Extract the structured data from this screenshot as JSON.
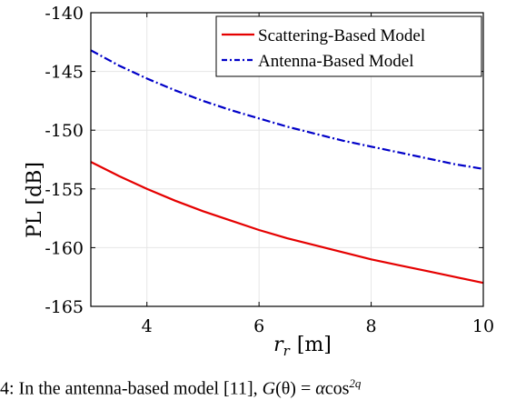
{
  "chart_data": {
    "type": "line",
    "title": "",
    "xlabel_base": "r",
    "xlabel_sub": "r",
    "xlabel_unit": "[m]",
    "ylabel": "PL [dB]",
    "xlim": [
      3,
      10
    ],
    "ylim": [
      -165,
      -140
    ],
    "xticks": [
      4,
      6,
      8,
      10
    ],
    "xtick_labels": [
      "4",
      "6",
      "8",
      "10"
    ],
    "yticks": [
      -165,
      -160,
      -155,
      -150,
      -145,
      -140
    ],
    "ytick_labels": [
      "-165",
      "-160",
      "-155",
      "-150",
      "-145",
      "-140"
    ],
    "grid": true,
    "legend_position": "top-right",
    "series": [
      {
        "name": "Scattering-Based Model",
        "color": "#e50000",
        "dash": "solid",
        "x": [
          3.0,
          3.5,
          4.0,
          4.5,
          5.0,
          5.5,
          6.0,
          6.5,
          7.0,
          7.5,
          8.0,
          8.5,
          9.0,
          9.5,
          10.0
        ],
        "y": [
          -152.7,
          -153.9,
          -155.0,
          -156.0,
          -156.9,
          -157.7,
          -158.5,
          -159.2,
          -159.8,
          -160.4,
          -161.0,
          -161.5,
          -162.0,
          -162.5,
          -163.0
        ]
      },
      {
        "name": "Antenna-Based Model",
        "color": "#0000c8",
        "dash": "dashdot",
        "x": [
          3.0,
          3.5,
          4.0,
          4.5,
          5.0,
          5.5,
          6.0,
          6.5,
          7.0,
          7.5,
          8.0,
          8.5,
          9.0,
          9.5,
          10.0
        ],
        "y": [
          -143.2,
          -144.5,
          -145.6,
          -146.6,
          -147.5,
          -148.3,
          -149.0,
          -149.7,
          -150.3,
          -150.9,
          -151.4,
          -151.9,
          -152.4,
          -152.9,
          -153.3
        ]
      }
    ]
  },
  "caption": {
    "prefix": "4: In the antenna-based model [11], ",
    "g": "G",
    "paren": "(θ) = ",
    "alpha": "α",
    "cos": "cos",
    "exp": "2q"
  }
}
